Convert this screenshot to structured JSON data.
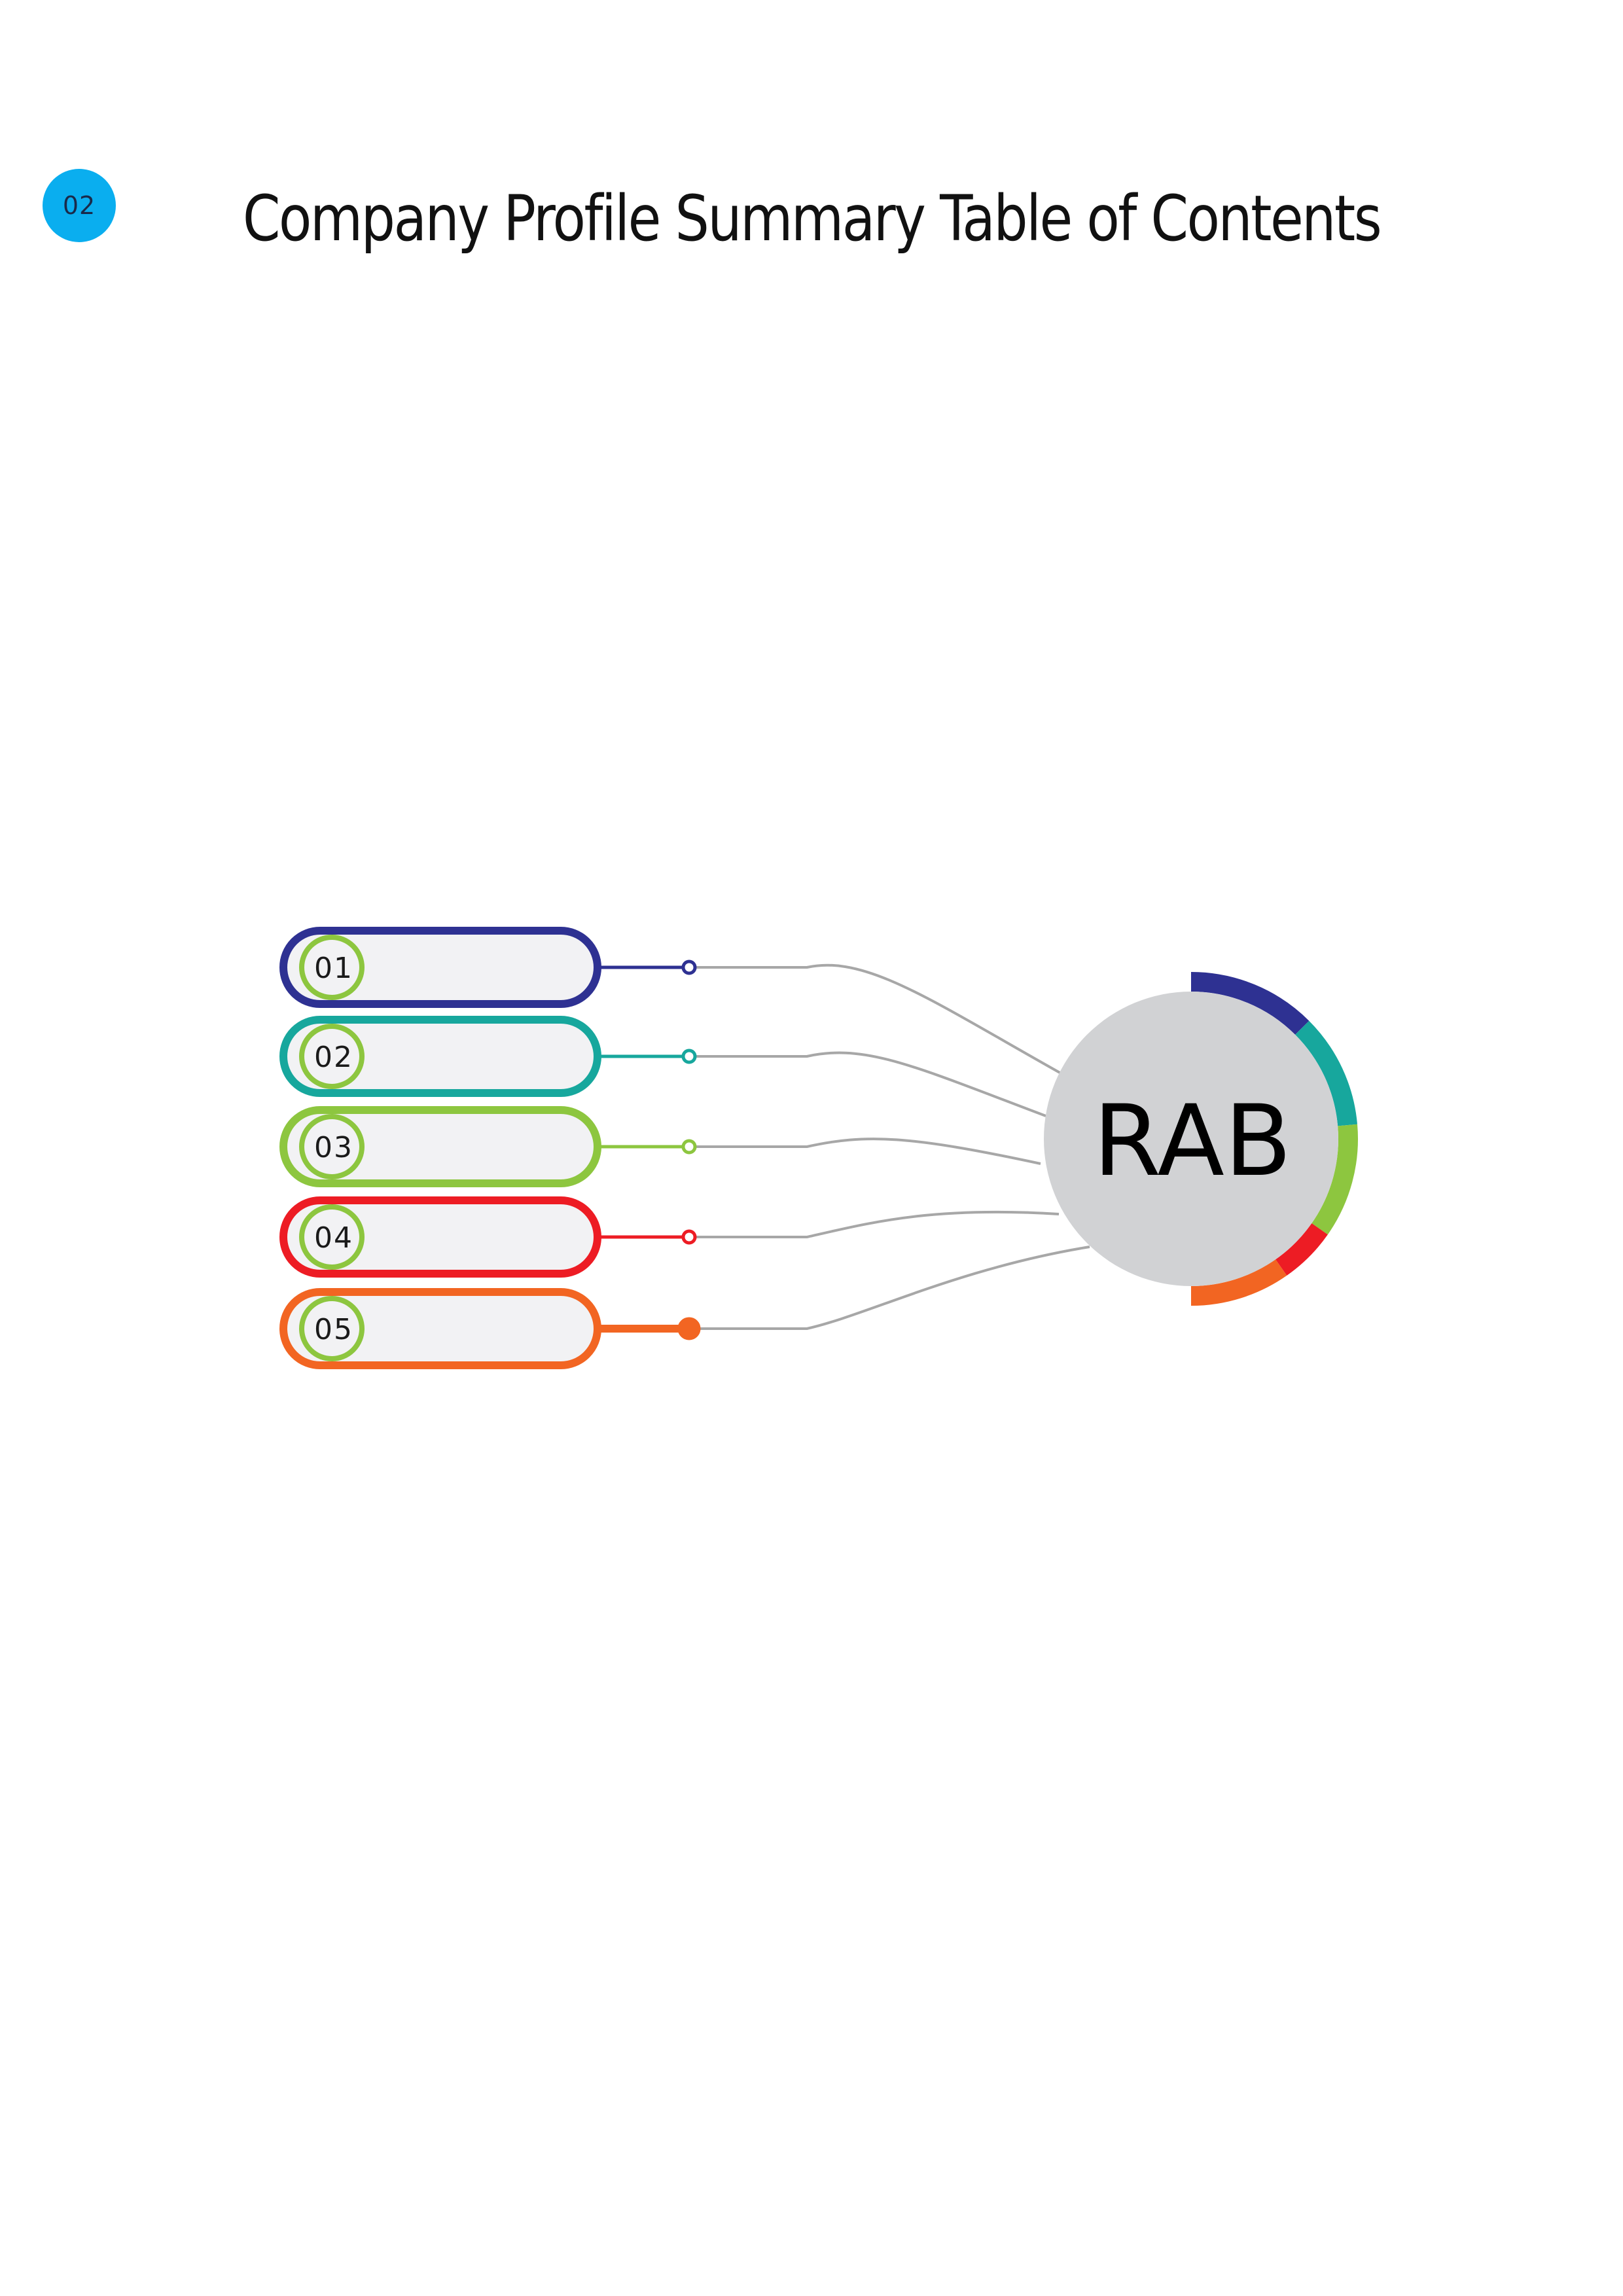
{
  "page": {
    "badge": "02",
    "title": "Company Profile Summary Table of Contents"
  },
  "diagram": {
    "center_label": "RAB",
    "center_fill": "#d1d2d4",
    "connector_color": "#a7a7a7",
    "number_ring_color": "#8dc63f",
    "items": [
      {
        "number": "01",
        "color": "#2e3192"
      },
      {
        "number": "02",
        "color": "#17a79d"
      },
      {
        "number": "03",
        "color": "#8dc63f"
      },
      {
        "number": "04",
        "color": "#ed1c24"
      },
      {
        "number": "05",
        "color": "#f26522"
      }
    ]
  }
}
